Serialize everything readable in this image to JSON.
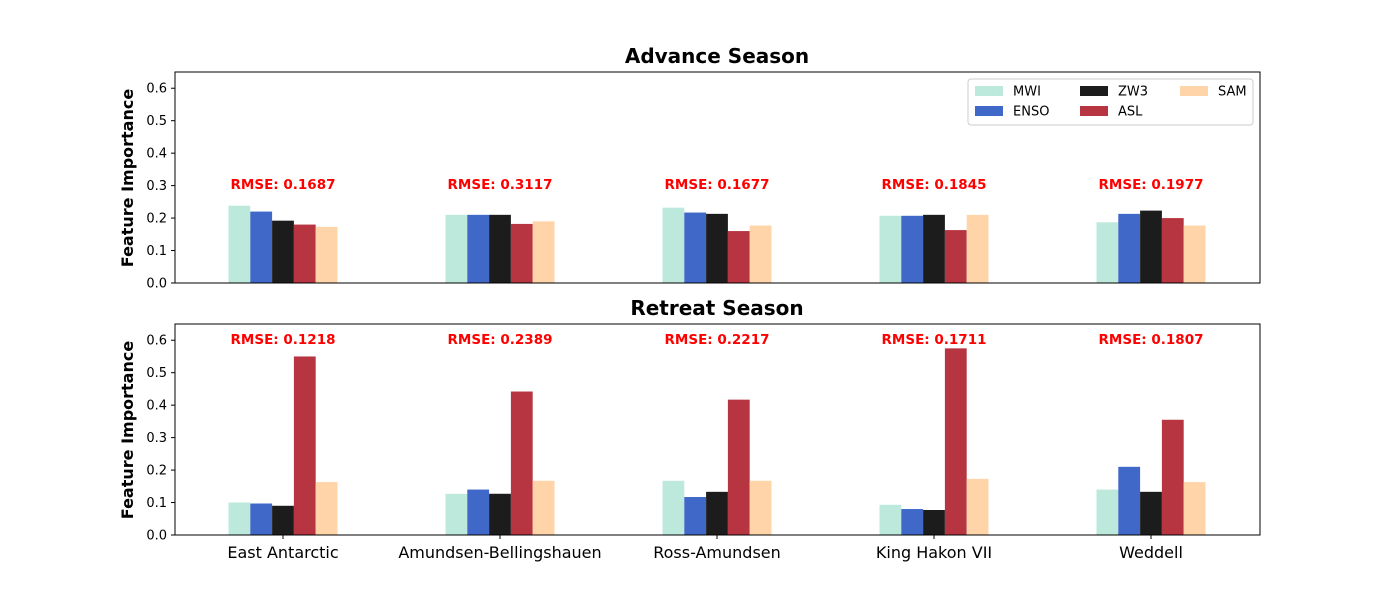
{
  "chart_data": [
    {
      "type": "bar",
      "title": "Advance Season",
      "xlabel": "",
      "ylabel": "Feature Importance",
      "ylim": [
        0,
        0.65
      ],
      "yticks": [
        "0.0",
        "0.1",
        "0.2",
        "0.3",
        "0.4",
        "0.5",
        "0.6"
      ],
      "categories": [
        "East Antarctic",
        "Amundsen-Bellingshauen",
        "Ross-Amundsen",
        "King Hakon VII",
        "Weddell"
      ],
      "show_xtick_labels": false,
      "legend": {
        "placement": "top-right",
        "columns": 3
      },
      "grid": false,
      "series": [
        {
          "name": "MWI",
          "color": "#bde8dc",
          "values": [
            0.238,
            0.21,
            0.232,
            0.207,
            0.187
          ]
        },
        {
          "name": "ENSO",
          "color": "#4068c8",
          "values": [
            0.22,
            0.21,
            0.217,
            0.207,
            0.213
          ]
        },
        {
          "name": "ZW3",
          "color": "#1c1c1c",
          "values": [
            0.192,
            0.21,
            0.213,
            0.21,
            0.223
          ]
        },
        {
          "name": "ASL",
          "color": "#b73540",
          "values": [
            0.18,
            0.182,
            0.16,
            0.163,
            0.2
          ]
        },
        {
          "name": "SAM",
          "color": "#ffd4a8",
          "values": [
            0.173,
            0.19,
            0.177,
            0.21,
            0.177
          ]
        }
      ],
      "annotations": [
        "RMSE: 0.1687",
        "RMSE: 0.3117",
        "RMSE: 0.1677",
        "RMSE: 0.1845",
        "RMSE: 0.1977"
      ],
      "annotation_color": "#ff0000"
    },
    {
      "type": "bar",
      "title": "Retreat Season",
      "xlabel": "",
      "ylabel": "Feature Importance",
      "ylim": [
        0,
        0.65
      ],
      "yticks": [
        "0.0",
        "0.1",
        "0.2",
        "0.3",
        "0.4",
        "0.5",
        "0.6"
      ],
      "categories": [
        "East Antarctic",
        "Amundsen-Bellingshauen",
        "Ross-Amundsen",
        "King Hakon VII",
        "Weddell"
      ],
      "show_xtick_labels": true,
      "grid": false,
      "series": [
        {
          "name": "MWI",
          "color": "#bde8dc",
          "values": [
            0.1,
            0.127,
            0.167,
            0.093,
            0.14
          ]
        },
        {
          "name": "ENSO",
          "color": "#4068c8",
          "values": [
            0.097,
            0.14,
            0.117,
            0.08,
            0.21
          ]
        },
        {
          "name": "ZW3",
          "color": "#1c1c1c",
          "values": [
            0.09,
            0.127,
            0.133,
            0.077,
            0.133
          ]
        },
        {
          "name": "ASL",
          "color": "#b73540",
          "values": [
            0.55,
            0.442,
            0.417,
            0.575,
            0.355
          ]
        },
        {
          "name": "SAM",
          "color": "#ffd4a8",
          "values": [
            0.163,
            0.167,
            0.167,
            0.173,
            0.163
          ]
        }
      ],
      "annotations": [
        "RMSE: 0.1218",
        "RMSE: 0.2389",
        "RMSE: 0.2217",
        "RMSE: 0.1711",
        "RMSE: 0.1807"
      ],
      "annotation_color": "#ff0000"
    }
  ]
}
